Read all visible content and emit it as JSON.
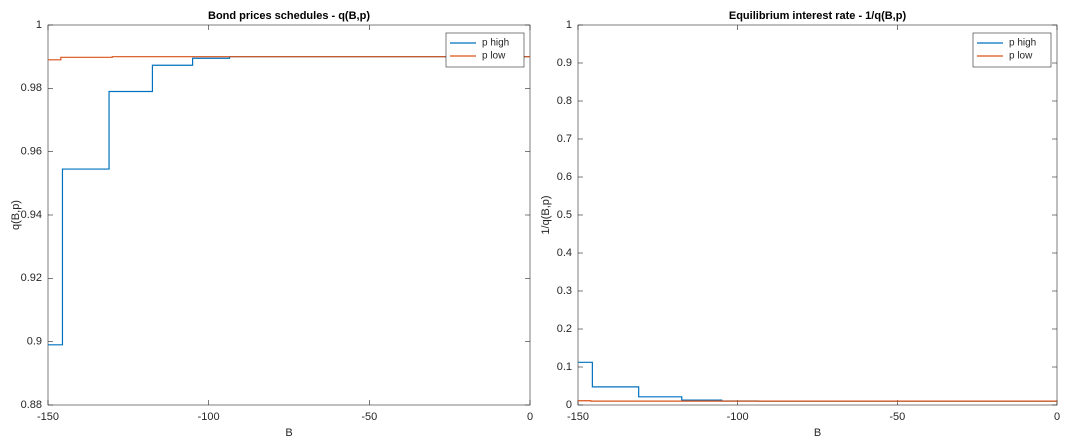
{
  "chart_data": [
    {
      "type": "line",
      "title": "Bond prices schedules - q(B,p)",
      "x_label": "B",
      "y_label": "q(B,p)",
      "xlim": [
        -150,
        0
      ],
      "xticks": [
        -150,
        -100,
        -50,
        0
      ],
      "ylim": [
        0.88,
        1
      ],
      "yticks": [
        0.88,
        0.9,
        0.92,
        0.94,
        0.96,
        0.98,
        1
      ],
      "legend": "northeast",
      "series": [
        {
          "name": "p high",
          "color": "#0072bd",
          "x": [
            -150,
            -145.5,
            -145.5,
            -131,
            -131,
            -117.5,
            -117.5,
            -105,
            -105,
            -93.5,
            -93.5,
            0
          ],
          "values": [
            0.899,
            0.899,
            0.9545,
            0.9545,
            0.979,
            0.979,
            0.9873,
            0.9873,
            0.9895,
            0.9895,
            0.99,
            0.99
          ]
        },
        {
          "name": "p low",
          "color": "#d95319",
          "x": [
            -150,
            -146,
            -146,
            -130,
            -130,
            0
          ],
          "values": [
            0.989,
            0.989,
            0.9898,
            0.9898,
            0.99,
            0.99
          ]
        }
      ]
    },
    {
      "type": "line",
      "title": "Equilibrium interest rate - 1/q(B,p)",
      "x_label": "B",
      "y_label": "1/q(B,p)",
      "xlim": [
        -150,
        0
      ],
      "xticks": [
        -150,
        -100,
        -50,
        0
      ],
      "ylim": [
        0,
        1
      ],
      "yticks": [
        0,
        0.1,
        0.2,
        0.3,
        0.4,
        0.5,
        0.6,
        0.7,
        0.8,
        0.9,
        1
      ],
      "legend": "northeast",
      "series": [
        {
          "name": "p high",
          "color": "#0072bd",
          "x": [
            -150,
            -145.5,
            -145.5,
            -131,
            -131,
            -117.5,
            -117.5,
            -105,
            -105,
            -93.5,
            -93.5,
            0
          ],
          "values": [
            0.1123,
            0.1123,
            0.0477,
            0.0477,
            0.0215,
            0.0215,
            0.0128,
            0.0128,
            0.0106,
            0.0106,
            0.0101,
            0.0101
          ]
        },
        {
          "name": "p low",
          "color": "#d95319",
          "x": [
            -150,
            -146,
            -146,
            -130,
            -130,
            0
          ],
          "values": [
            0.0111,
            0.0111,
            0.0103,
            0.0103,
            0.0101,
            0.0101
          ]
        }
      ]
    }
  ]
}
